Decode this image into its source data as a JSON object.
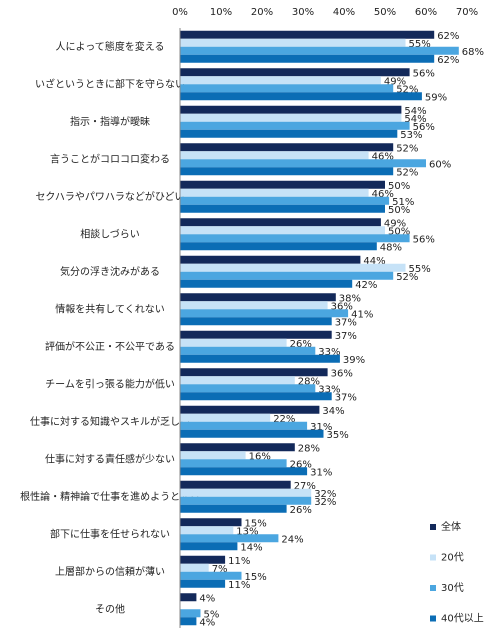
{
  "chart_data": {
    "type": "bar",
    "orientation": "horizontal",
    "categories": [
      "人によって態度を変える",
      "いざというときに部下を守らない",
      "指示・指導が曖昧",
      "言うことがコロコロ変わる",
      "セクハラやパワハラなどがひどい",
      "相談しづらい",
      "気分の浮き沈みがある",
      "情報を共有してくれない",
      "評価が不公正・不公平である",
      "チームを引っ張る能力が低い",
      "仕事に対する知識やスキルが乏しい",
      "仕事に対する責任感が少ない",
      "根性論・精神論で仕事を進めようとする",
      "部下に仕事を任せられない",
      "上層部からの信頼が薄い",
      "その他"
    ],
    "series": [
      {
        "name": "全体",
        "color": "#13295a",
        "values": [
          62,
          56,
          54,
          52,
          50,
          49,
          44,
          38,
          37,
          36,
          34,
          28,
          27,
          15,
          11,
          4
        ],
        "value_labels": [
          "62%",
          "56%",
          "54%",
          "52%",
          "50%",
          "49%",
          "44%",
          "38%",
          "37%",
          "36%",
          "34%",
          "28%",
          "27%",
          "15%",
          "11%",
          "4%"
        ]
      },
      {
        "name": "20代",
        "color": "#c6e2f7",
        "values": [
          55,
          49,
          54,
          46,
          46,
          50,
          55,
          36,
          26,
          28,
          22,
          16,
          32,
          13,
          7,
          null
        ],
        "value_labels": [
          "55%",
          "49%",
          "54%",
          "46%",
          "46%",
          "50%",
          "55%",
          "36%",
          "26%",
          "28%",
          "22%",
          "16%",
          "32%",
          "13%",
          "7%",
          null
        ]
      },
      {
        "name": "30代",
        "color": "#4ba6e0",
        "values": [
          68,
          52,
          56,
          60,
          51,
          56,
          52,
          41,
          33,
          33,
          31,
          26,
          32,
          24,
          15,
          5
        ],
        "value_labels": [
          "68%",
          "52%",
          "56%",
          "60%",
          "51%",
          "56%",
          "52%",
          "41%",
          "33%",
          "33%",
          "31%",
          "26%",
          "32%",
          "24%",
          "15%",
          "5%"
        ]
      },
      {
        "name": "40代以上",
        "color": "#0b6db5",
        "values": [
          62,
          59,
          53,
          52,
          50,
          48,
          42,
          37,
          39,
          37,
          35,
          31,
          26,
          14,
          11,
          4
        ],
        "value_labels": [
          "62%",
          "59%",
          "53%",
          "52%",
          "50%",
          "48%",
          "42%",
          "37%",
          "39%",
          "37%",
          "35%",
          "31%",
          "26%",
          "14%",
          "11%",
          "4%"
        ]
      }
    ],
    "xlim": [
      0,
      70
    ],
    "xticks": [
      {
        "value": 0,
        "label": "0%"
      },
      {
        "value": 10,
        "label": "10%"
      },
      {
        "value": 20,
        "label": "20%"
      },
      {
        "value": 30,
        "label": "30%"
      },
      {
        "value": 40,
        "label": "40%"
      },
      {
        "value": 50,
        "label": "50%"
      },
      {
        "value": 60,
        "label": "60%"
      },
      {
        "value": 70,
        "label": "70%"
      }
    ],
    "grid": false,
    "legend": "lower right"
  }
}
